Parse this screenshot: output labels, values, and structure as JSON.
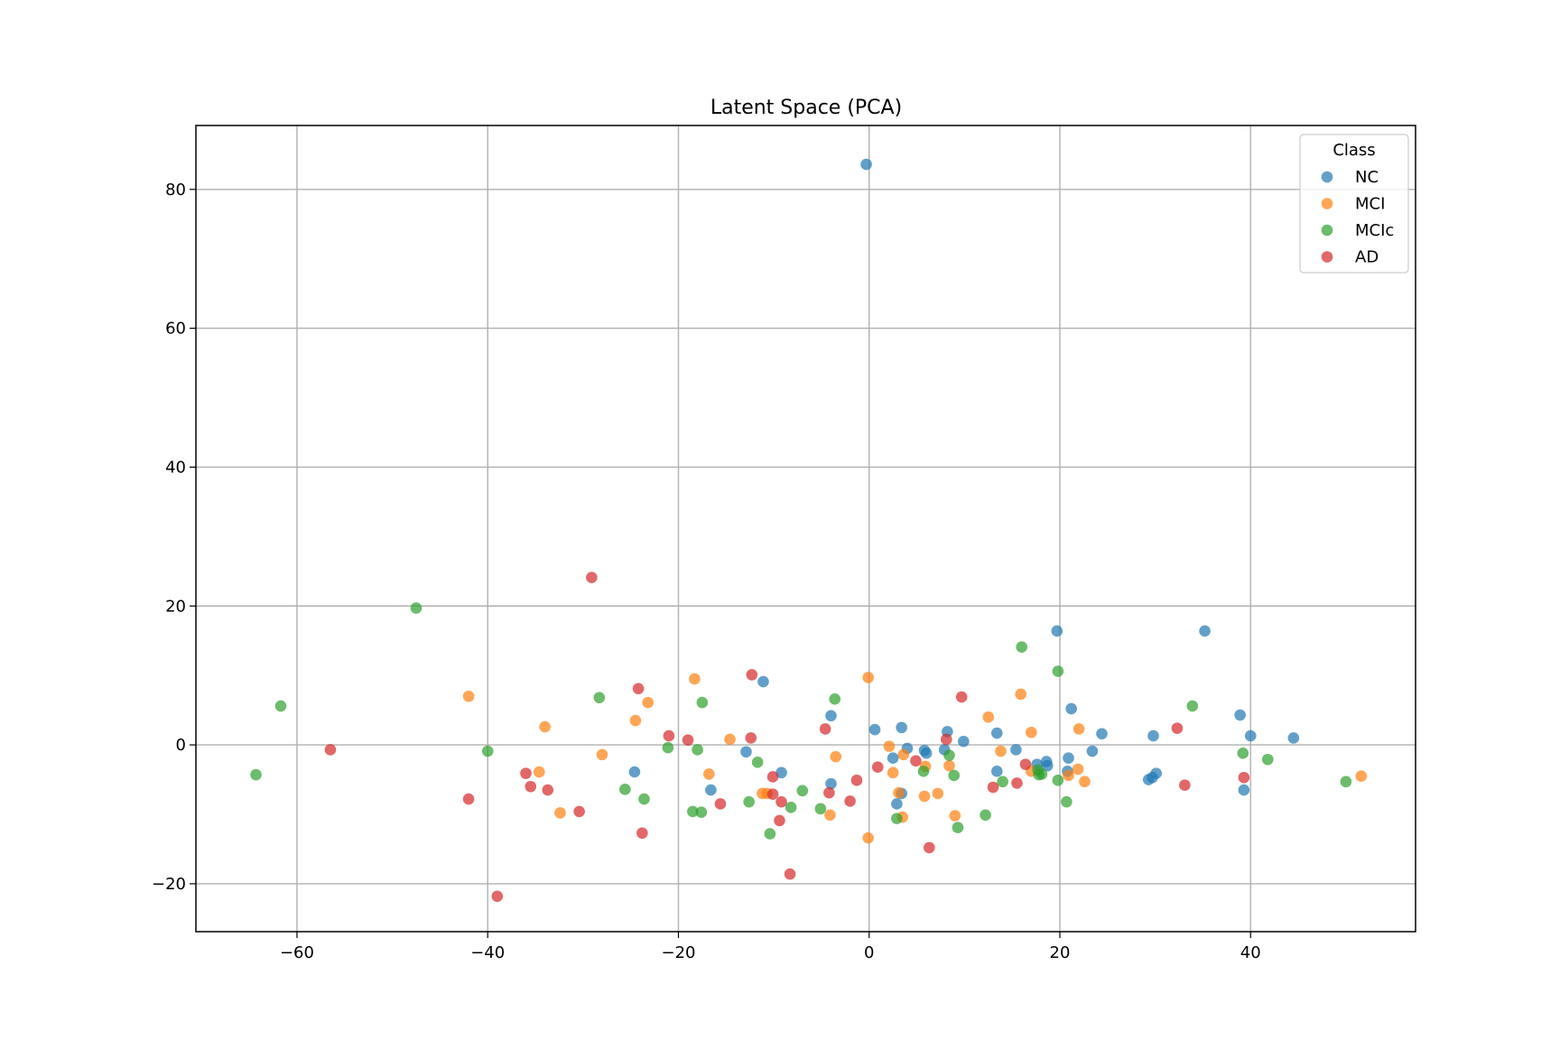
{
  "chart_data": {
    "type": "scatter",
    "title": "Latent Space (PCA)",
    "xlabel": "",
    "ylabel": "",
    "xlim": [
      -70.6,
      57.3
    ],
    "ylim": [
      -26.9,
      89.2
    ],
    "xticks": [
      -60,
      -40,
      -20,
      0,
      20,
      40
    ],
    "yticks": [
      -20,
      0,
      20,
      40,
      60,
      80
    ],
    "x_tick_labels": [
      "−60",
      "−40",
      "−20",
      "0",
      "20",
      "40"
    ],
    "y_tick_labels": [
      "−20",
      "0",
      "20",
      "40",
      "60",
      "80"
    ],
    "grid": true,
    "legend": {
      "title": "Class",
      "placement": "top-right"
    },
    "series": [
      {
        "name": "NC",
        "color": "#1f77b4",
        "points": [
          [
            -0.3,
            83.6
          ],
          [
            19.7,
            16.4
          ],
          [
            35.2,
            16.4
          ],
          [
            -11.1,
            9.1
          ],
          [
            -4.0,
            4.2
          ],
          [
            0.6,
            2.2
          ],
          [
            3.4,
            2.5
          ],
          [
            8.2,
            1.9
          ],
          [
            13.4,
            1.7
          ],
          [
            21.2,
            5.2
          ],
          [
            24.4,
            1.6
          ],
          [
            29.8,
            1.3
          ],
          [
            38.9,
            4.3
          ],
          [
            40.0,
            1.3
          ],
          [
            44.5,
            1.0
          ],
          [
            4.0,
            -0.5
          ],
          [
            5.8,
            -0.8
          ],
          [
            6.0,
            -1.2
          ],
          [
            7.9,
            -0.7
          ],
          [
            9.9,
            0.5
          ],
          [
            15.4,
            -0.7
          ],
          [
            23.4,
            -0.9
          ],
          [
            -12.9,
            -1.0
          ],
          [
            2.5,
            -1.9
          ],
          [
            20.9,
            -1.9
          ],
          [
            17.6,
            -2.8
          ],
          [
            18.6,
            -2.4
          ],
          [
            18.7,
            -3.0
          ],
          [
            13.4,
            -3.8
          ],
          [
            20.8,
            -3.8
          ],
          [
            -9.2,
            -4.0
          ],
          [
            -24.6,
            -3.9
          ],
          [
            30.1,
            -4.1
          ],
          [
            29.7,
            -4.7
          ],
          [
            29.3,
            -5.0
          ],
          [
            -4.0,
            -5.6
          ],
          [
            -16.6,
            -6.5
          ],
          [
            39.3,
            -6.5
          ],
          [
            3.4,
            -7.0
          ],
          [
            2.9,
            -8.5
          ]
        ]
      },
      {
        "name": "MCI",
        "color": "#ff7f0e",
        "points": [
          [
            -0.1,
            9.7
          ],
          [
            -18.3,
            9.5
          ],
          [
            -42.0,
            7.0
          ],
          [
            15.9,
            7.3
          ],
          [
            -23.2,
            6.1
          ],
          [
            12.5,
            4.0
          ],
          [
            -24.5,
            3.5
          ],
          [
            -34.0,
            2.6
          ],
          [
            22.0,
            2.3
          ],
          [
            17.0,
            1.8
          ],
          [
            -14.6,
            0.8
          ],
          [
            2.1,
            -0.2
          ],
          [
            13.8,
            -0.9
          ],
          [
            3.6,
            -1.4
          ],
          [
            -3.5,
            -1.7
          ],
          [
            -28.0,
            -1.4
          ],
          [
            5.9,
            -3.1
          ],
          [
            8.4,
            -3.0
          ],
          [
            21.9,
            -3.5
          ],
          [
            17.0,
            -3.8
          ],
          [
            20.9,
            -4.4
          ],
          [
            -16.8,
            -4.2
          ],
          [
            -34.6,
            -3.9
          ],
          [
            2.5,
            -4.0
          ],
          [
            51.6,
            -4.5
          ],
          [
            22.6,
            -5.3
          ],
          [
            -11.2,
            -7.0
          ],
          [
            -10.7,
            -7.0
          ],
          [
            3.1,
            -6.9
          ],
          [
            7.2,
            -7.0
          ],
          [
            5.8,
            -7.4
          ],
          [
            -4.1,
            -10.1
          ],
          [
            -32.4,
            -9.8
          ],
          [
            3.5,
            -10.4
          ],
          [
            9.0,
            -10.2
          ],
          [
            -0.1,
            -13.4
          ]
        ]
      },
      {
        "name": "MCIc",
        "color": "#2ca02c",
        "points": [
          [
            -47.5,
            19.7
          ],
          [
            16.0,
            14.1
          ],
          [
            19.8,
            10.6
          ],
          [
            -28.3,
            6.8
          ],
          [
            -17.5,
            6.1
          ],
          [
            -3.6,
            6.6
          ],
          [
            -61.7,
            5.6
          ],
          [
            33.9,
            5.6
          ],
          [
            -21.1,
            -0.4
          ],
          [
            -18.0,
            -0.7
          ],
          [
            -40.0,
            -0.9
          ],
          [
            39.2,
            -1.2
          ],
          [
            8.4,
            -1.5
          ],
          [
            -11.7,
            -2.5
          ],
          [
            41.8,
            -2.1
          ],
          [
            17.7,
            -3.6
          ],
          [
            5.7,
            -3.8
          ],
          [
            8.9,
            -4.4
          ],
          [
            17.8,
            -4.3
          ],
          [
            18.1,
            -4.2
          ],
          [
            -64.3,
            -4.3
          ],
          [
            19.8,
            -5.1
          ],
          [
            14.0,
            -5.3
          ],
          [
            50.0,
            -5.3
          ],
          [
            -7.0,
            -6.6
          ],
          [
            -25.6,
            -6.4
          ],
          [
            -23.6,
            -7.8
          ],
          [
            -12.6,
            -8.2
          ],
          [
            20.7,
            -8.2
          ],
          [
            -8.2,
            -9.0
          ],
          [
            -5.1,
            -9.2
          ],
          [
            -18.5,
            -9.6
          ],
          [
            -17.6,
            -9.7
          ],
          [
            12.2,
            -10.1
          ],
          [
            2.9,
            -10.6
          ],
          [
            9.3,
            -11.9
          ],
          [
            -10.4,
            -12.8
          ]
        ]
      },
      {
        "name": "AD",
        "color": "#d62728",
        "points": [
          [
            -29.1,
            24.1
          ],
          [
            -12.3,
            10.1
          ],
          [
            9.7,
            6.9
          ],
          [
            -24.2,
            8.1
          ],
          [
            -4.6,
            2.3
          ],
          [
            32.3,
            2.4
          ],
          [
            -21.0,
            1.3
          ],
          [
            -19.0,
            0.7
          ],
          [
            -12.4,
            1.0
          ],
          [
            8.1,
            0.8
          ],
          [
            -56.5,
            -0.7
          ],
          [
            4.9,
            -2.3
          ],
          [
            16.4,
            -2.8
          ],
          [
            0.9,
            -3.2
          ],
          [
            -36.0,
            -4.1
          ],
          [
            -10.1,
            -4.6
          ],
          [
            39.3,
            -4.7
          ],
          [
            -1.3,
            -5.1
          ],
          [
            15.5,
            -5.5
          ],
          [
            -35.5,
            -6.0
          ],
          [
            33.1,
            -5.8
          ],
          [
            13.0,
            -6.1
          ],
          [
            -33.7,
            -6.5
          ],
          [
            -4.2,
            -6.9
          ],
          [
            -10.1,
            -7.1
          ],
          [
            -42.0,
            -7.8
          ],
          [
            -2.0,
            -8.1
          ],
          [
            -9.2,
            -8.2
          ],
          [
            -15.6,
            -8.5
          ],
          [
            -30.4,
            -9.6
          ],
          [
            -9.4,
            -10.9
          ],
          [
            -23.8,
            -12.7
          ],
          [
            6.3,
            -14.8
          ],
          [
            -8.3,
            -18.6
          ],
          [
            -39.0,
            -21.8
          ]
        ]
      }
    ]
  }
}
